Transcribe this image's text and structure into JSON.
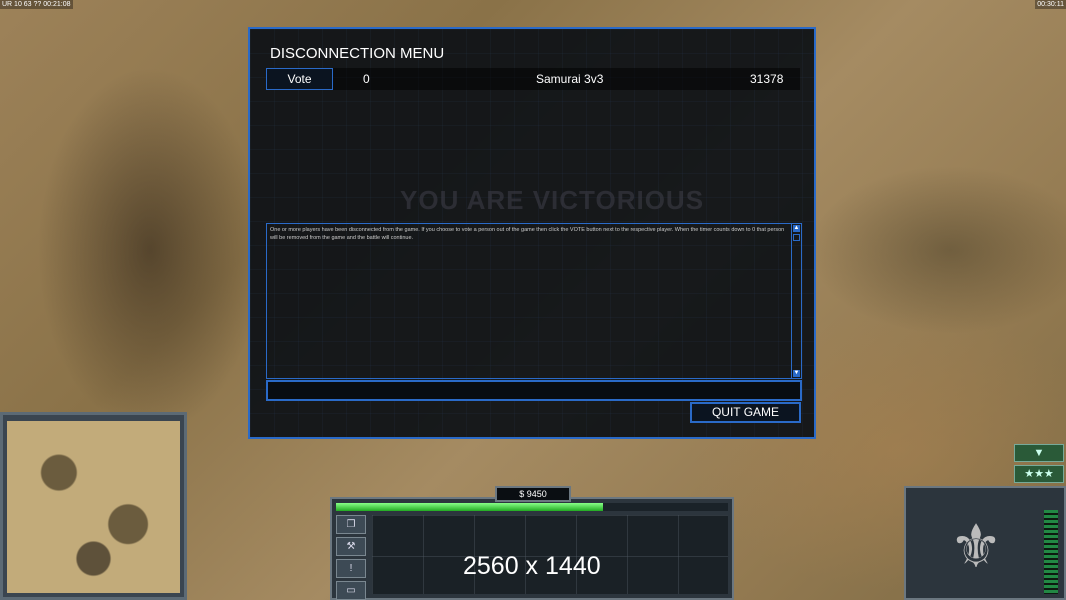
{
  "hud": {
    "top_left": "UR 10 63 ?? 00:21:08",
    "top_right": "00:30:11",
    "money": "$ 9450",
    "power_fraction": 0.68,
    "resolution_overlay": "2560 x 1440",
    "sidebar_icons": [
      "windows-icon",
      "wrench-icon",
      "alert-icon",
      "sign-icon"
    ],
    "rank_buttons": [
      "▼",
      "★★★"
    ]
  },
  "dialog": {
    "title": "DISCONNECTION MENU",
    "players": [
      {
        "vote_label": "Vote",
        "votes": "0",
        "name": "Samurai 3v3",
        "timer": "31378"
      }
    ],
    "background_text": "YOU ARE VICTORIOUS",
    "message": "One or more players have been disconnected from the game. If you choose to vote a person out of the game then click the VOTE button next to the respective player. When the timer counts down to 0 that person will be removed from the game and the battle will continue.",
    "chat_input_value": "",
    "quit_label": "QUIT GAME"
  },
  "colors": {
    "accent": "#2a6ac8",
    "power": "#33cc33"
  }
}
